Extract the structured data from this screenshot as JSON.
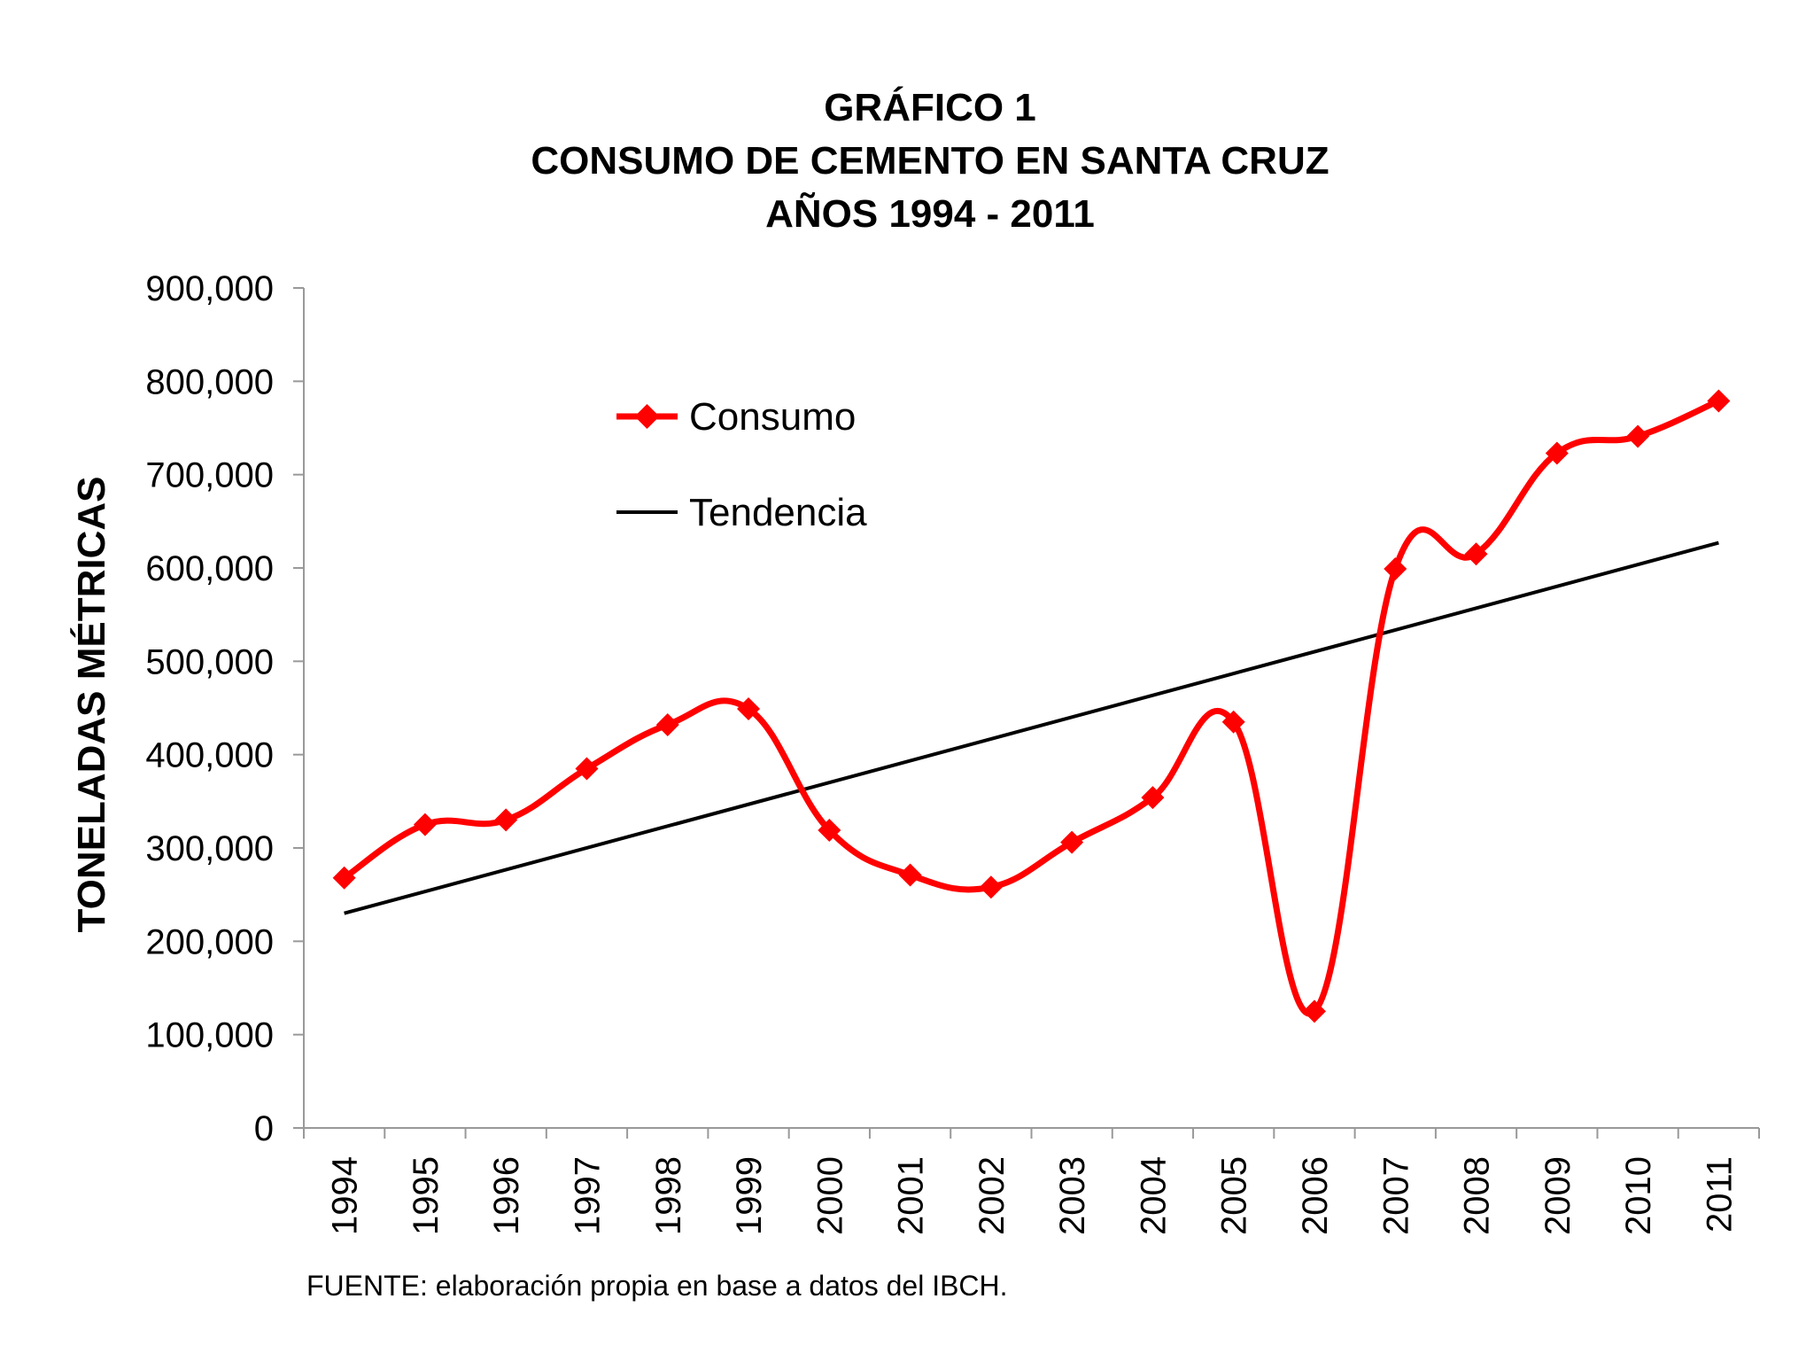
{
  "chart_data": {
    "type": "line",
    "title_lines": [
      "GRÁFICO 1",
      "CONSUMO DE CEMENTO EN SANTA CRUZ",
      "AÑOS 1994 - 2011"
    ],
    "ylabel": "TONELADAS MÉTRICAS",
    "xlabel": "",
    "ylim": [
      0,
      900000
    ],
    "yticks": [
      0,
      100000,
      200000,
      300000,
      400000,
      500000,
      600000,
      700000,
      800000,
      900000
    ],
    "ytick_labels": [
      "0",
      "100,000",
      "200,000",
      "300,000",
      "400,000",
      "500,000",
      "600,000",
      "700,000",
      "800,000",
      "900,000"
    ],
    "categories": [
      "1994",
      "1995",
      "1996",
      "1997",
      "1998",
      "1999",
      "2000",
      "2001",
      "2002",
      "2003",
      "2004",
      "2005",
      "2006",
      "2007",
      "2008",
      "2009",
      "2010",
      "2011"
    ],
    "series": [
      {
        "name": "Consumo",
        "color": "#ff0000",
        "marker": "diamond",
        "smooth": true,
        "values": [
          268000,
          325000,
          330000,
          385000,
          432000,
          449000,
          319000,
          271000,
          258000,
          306000,
          354000,
          435000,
          125000,
          599000,
          615000,
          723000,
          741000,
          779000
        ]
      },
      {
        "name": "Tendencia",
        "color": "#000000",
        "marker": "none",
        "smooth": false,
        "values": [
          230000,
          253000,
          276000,
          299000,
          322000,
          345000,
          368000,
          391000,
          414000,
          437000,
          460000,
          483000,
          506000,
          529000,
          552000,
          575000,
          598000,
          627000
        ]
      }
    ],
    "legend": {
      "position": "top-left-inside",
      "entries": [
        "Consumo",
        "Tendencia"
      ]
    },
    "grid": false,
    "source": "FUENTE: elaboración propia en base a datos del IBCH."
  }
}
